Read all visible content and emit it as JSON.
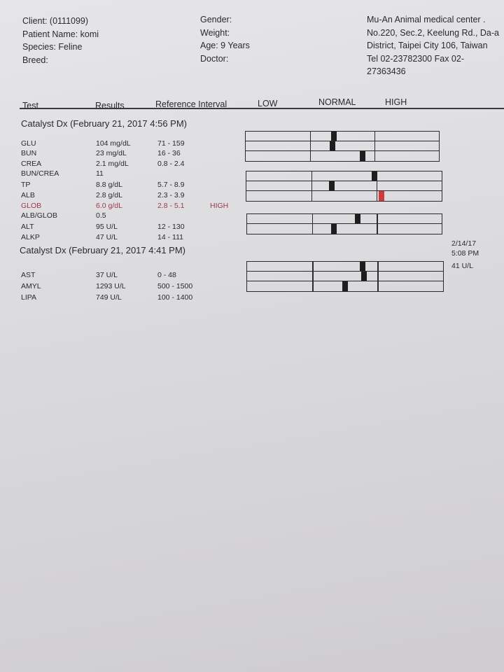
{
  "patient": {
    "client": "Client:  (0111099)",
    "patient_name": "Patient Name: komi",
    "species": "Species: Feline",
    "breed": "Breed:",
    "gender": "Gender:",
    "weight": "Weight:",
    "age": "Age: 9 Years",
    "doctor": "Doctor:"
  },
  "clinic": {
    "name": "Mu-An Animal medical center .",
    "address1": "No.220, Sec.2, Keelung Rd., Da-a",
    "address2": "District, Taipei City 106, Taiwan",
    "tel": "Tel 02-23782300  Fax 02-",
    "fax_cont": "27363436"
  },
  "columns": {
    "test": "Test",
    "results": "Results",
    "reference": "Reference Interval",
    "low": "LOW",
    "normal": "NORMAL",
    "high": "HIGH"
  },
  "colors": {
    "normal_marker": "#1e1e1e",
    "high_marker": "#d23a3a",
    "high_text": "#9a3b48"
  },
  "sections": [
    {
      "title": "Catalyst Dx (February 21, 2017 4:56 PM)",
      "tests": [
        {
          "name": "GLU",
          "result": "104 mg/dL",
          "value": 104,
          "range": "71 - 159",
          "lo": 71,
          "hi": 159,
          "flag": ""
        },
        {
          "name": "BUN",
          "result": "23 mg/dL",
          "value": 23,
          "range": "16 - 36",
          "lo": 16,
          "hi": 36,
          "flag": ""
        },
        {
          "name": "CREA",
          "result": "2.1 mg/dL",
          "value": 2.1,
          "range": "0.8 - 2.4",
          "lo": 0.8,
          "hi": 2.4,
          "flag": ""
        },
        {
          "name": "BUN/CREA",
          "result": "11",
          "range": "",
          "flag": ""
        },
        {
          "name": "TP",
          "result": "8.8 g/dL",
          "value": 8.8,
          "range": "5.7 - 8.9",
          "lo": 5.7,
          "hi": 8.9,
          "flag": ""
        },
        {
          "name": "ALB",
          "result": "2.8 g/dL",
          "value": 2.8,
          "range": "2.3 - 3.9",
          "lo": 2.3,
          "hi": 3.9,
          "flag": ""
        },
        {
          "name": "GLOB",
          "result": "6.0 g/dL",
          "value": 6.0,
          "range": "2.8 - 5.1",
          "lo": 2.8,
          "hi": 5.1,
          "flag": "HIGH"
        },
        {
          "name": "ALB/GLOB",
          "result": "0.5",
          "range": "",
          "flag": ""
        },
        {
          "name": "ALT",
          "result": "95 U/L",
          "value": 95,
          "range": "12 - 130",
          "lo": 12,
          "hi": 130,
          "flag": ""
        },
        {
          "name": "ALKP",
          "result": "47 U/L",
          "value": 47,
          "range": "14 - 111",
          "lo": 14,
          "hi": 111,
          "flag": ""
        }
      ]
    },
    {
      "title": "Catalyst Dx (February 21, 2017 4:41 PM)",
      "tests": [
        {
          "name": "AST",
          "result": "37 U/L",
          "value": 37,
          "range": "0 - 48",
          "lo": 0,
          "hi": 48,
          "flag": ""
        },
        {
          "name": "AMYL",
          "result": "1293 U/L",
          "value": 1293,
          "range": "500 - 1500",
          "lo": 500,
          "hi": 1500,
          "flag": ""
        },
        {
          "name": "LIPA",
          "result": "749 U/L",
          "value": 749,
          "range": "100 - 1400",
          "lo": 100,
          "hi": 1400,
          "flag": ""
        }
      ]
    }
  ],
  "prior_result": {
    "date": "2/14/17",
    "time": "5:08 PM",
    "value": "41 U/L"
  }
}
